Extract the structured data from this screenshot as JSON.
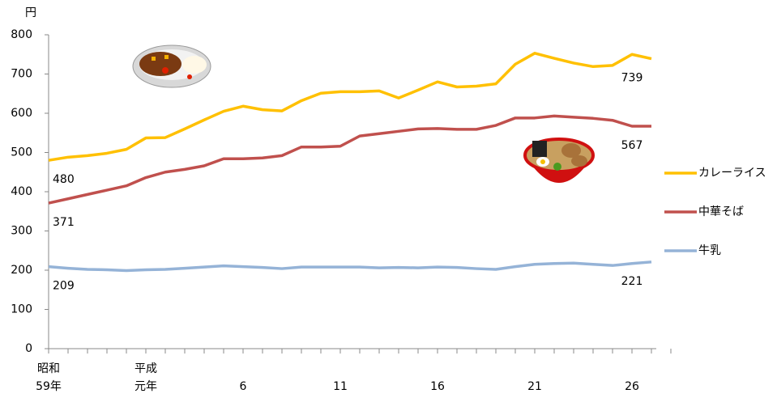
{
  "chart_data": {
    "type": "line",
    "y_label": "円",
    "categories": [
      "昭和\n59年",
      null,
      null,
      null,
      null,
      "平成\n元年",
      null,
      null,
      null,
      null,
      "6",
      null,
      null,
      null,
      null,
      "11",
      null,
      null,
      null,
      null,
      "16",
      null,
      null,
      null,
      null,
      "21",
      null,
      null,
      null,
      null,
      "26",
      null
    ],
    "ylim": [
      0,
      800
    ],
    "yticks": [
      0,
      100,
      200,
      300,
      400,
      500,
      600,
      700,
      800
    ],
    "series": [
      {
        "name": "カレーライス",
        "color": "#ffc000",
        "values": [
          480,
          488,
          492,
          498,
          508,
          537,
          538,
          560,
          583,
          605,
          618,
          609,
          606,
          632,
          651,
          655,
          655,
          657,
          639,
          659,
          680,
          667,
          669,
          675,
          725,
          753,
          740,
          728,
          719,
          722,
          750,
          739
        ]
      },
      {
        "name": "中華そば",
        "color": "#c0504d",
        "values": [
          371,
          382,
          393,
          404,
          415,
          436,
          450,
          457,
          466,
          484,
          484,
          486,
          492,
          514,
          514,
          516,
          542,
          548,
          554,
          560,
          561,
          559,
          559,
          569,
          588,
          588,
          593,
          590,
          587,
          582,
          567,
          567
        ]
      },
      {
        "name": "牛乳",
        "color": "#95b3d7",
        "values": [
          209,
          205,
          202,
          201,
          199,
          201,
          202,
          205,
          208,
          211,
          209,
          207,
          204,
          208,
          208,
          208,
          208,
          206,
          207,
          206,
          208,
          207,
          204,
          202,
          209,
          215,
          217,
          218,
          215,
          212,
          217,
          221
        ]
      }
    ]
  }
}
